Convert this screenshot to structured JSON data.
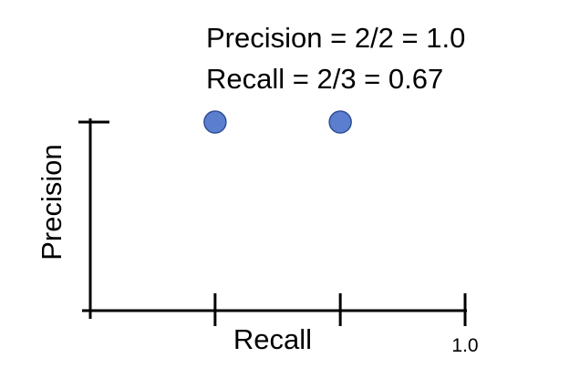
{
  "chart_data": {
    "type": "scatter",
    "title": "",
    "xlabel": "Recall",
    "ylabel": "Precision",
    "annotations": [
      "Precision = 2/2 = 1.0",
      "Recall = 2/3 = 0.67"
    ],
    "x_tick_labels": [
      "",
      "",
      "1.0"
    ],
    "x_ticks": [
      0.333,
      0.667,
      1.0
    ],
    "y_ticks": [
      1.0
    ],
    "xlim": [
      0,
      1.0
    ],
    "ylim": [
      0,
      1.0
    ],
    "grid": false,
    "series": [
      {
        "x": [
          0.333,
          0.667
        ],
        "y": [
          1.0,
          1.0
        ]
      }
    ],
    "colors": {
      "point_fill": "#5b7fce",
      "point_stroke": "#2f4f96",
      "axis": "#000000"
    }
  }
}
